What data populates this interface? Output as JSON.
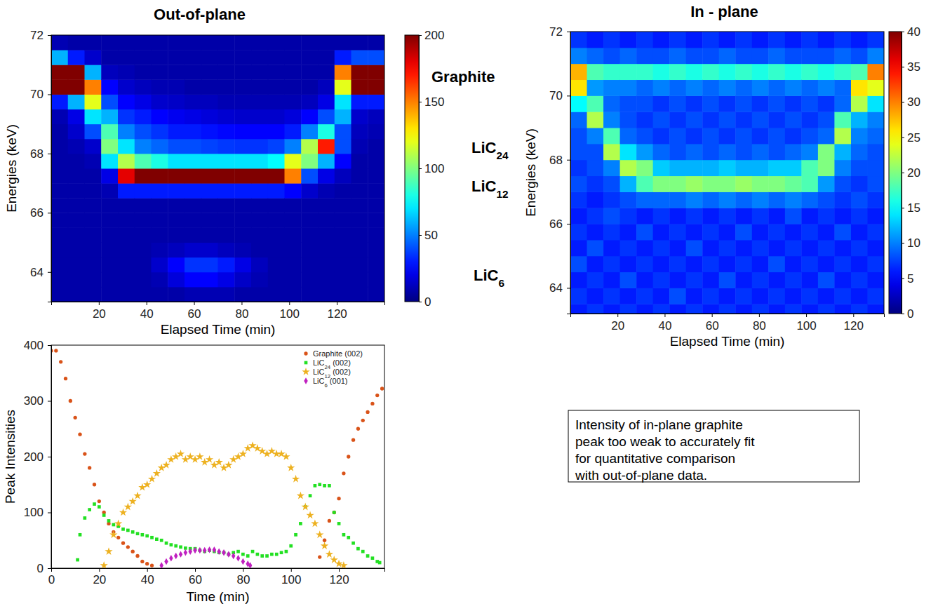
{
  "chart_data": [
    {
      "type": "heatmap",
      "title": "Out-of-plane",
      "x_label": "Elapsed Time (min)",
      "y_label": "Energies (keV)",
      "xlim": [
        0,
        140
      ],
      "ylim": [
        63,
        72
      ],
      "xticks": [
        20,
        40,
        60,
        80,
        100,
        120
      ],
      "yticks": [
        64,
        66,
        68,
        70,
        72
      ],
      "x_edges": [
        0,
        7,
        14,
        21,
        28,
        35,
        42,
        49,
        56,
        63,
        70,
        77,
        84,
        91,
        98,
        105,
        112,
        119,
        126,
        133,
        140
      ],
      "y_edges": [
        63,
        63.5,
        64,
        64.5,
        65,
        65.5,
        66,
        66.5,
        67,
        67.5,
        68,
        68.5,
        69,
        69.5,
        70,
        70.5,
        71,
        71.5,
        72
      ],
      "cells": [
        [
          8,
          8,
          8,
          8,
          8,
          8,
          8,
          8,
          8,
          8,
          8,
          8,
          10,
          30,
          200,
          230,
          60,
          10
        ],
        [
          8,
          8,
          8,
          8,
          8,
          8,
          8,
          8,
          8,
          8,
          10,
          15,
          20,
          60,
          220,
          210,
          30,
          8
        ],
        [
          8,
          8,
          8,
          8,
          8,
          8,
          8,
          8,
          8,
          10,
          15,
          40,
          70,
          120,
          150,
          60,
          15,
          8
        ],
        [
          8,
          8,
          8,
          8,
          8,
          8,
          8,
          10,
          20,
          70,
          100,
          90,
          60,
          40,
          25,
          12,
          8,
          8
        ],
        [
          8,
          8,
          8,
          8,
          8,
          8,
          8,
          30,
          180,
          110,
          70,
          50,
          35,
          25,
          15,
          10,
          8,
          8
        ],
        [
          8,
          8,
          8,
          8,
          8,
          8,
          8,
          30,
          220,
          90,
          50,
          40,
          30,
          20,
          12,
          8,
          8,
          8
        ],
        [
          8,
          10,
          15,
          10,
          8,
          8,
          8,
          30,
          230,
          80,
          45,
          35,
          25,
          15,
          10,
          8,
          8,
          8
        ],
        [
          8,
          18,
          25,
          12,
          8,
          8,
          8,
          30,
          240,
          70,
          40,
          30,
          22,
          14,
          10,
          8,
          8,
          8
        ],
        [
          10,
          25,
          35,
          15,
          8,
          8,
          8,
          30,
          240,
          70,
          40,
          30,
          20,
          12,
          8,
          8,
          8,
          8
        ],
        [
          10,
          25,
          35,
          15,
          8,
          8,
          8,
          30,
          240,
          70,
          38,
          28,
          18,
          12,
          8,
          8,
          8,
          8
        ],
        [
          10,
          20,
          30,
          12,
          8,
          8,
          8,
          30,
          240,
          70,
          36,
          26,
          16,
          10,
          8,
          8,
          8,
          8
        ],
        [
          8,
          14,
          20,
          10,
          8,
          8,
          8,
          30,
          240,
          70,
          35,
          25,
          15,
          10,
          8,
          8,
          8,
          8
        ],
        [
          8,
          10,
          12,
          8,
          8,
          8,
          8,
          30,
          240,
          70,
          35,
          25,
          15,
          10,
          8,
          8,
          8,
          8
        ],
        [
          8,
          8,
          8,
          8,
          8,
          8,
          8,
          30,
          230,
          75,
          38,
          25,
          15,
          10,
          8,
          8,
          8,
          8
        ],
        [
          8,
          8,
          8,
          8,
          8,
          8,
          8,
          25,
          150,
          120,
          50,
          30,
          18,
          10,
          8,
          8,
          8,
          8
        ],
        [
          8,
          8,
          8,
          8,
          8,
          8,
          8,
          15,
          40,
          100,
          110,
          50,
          25,
          12,
          8,
          8,
          8,
          8
        ],
        [
          8,
          8,
          8,
          8,
          8,
          8,
          8,
          10,
          20,
          60,
          170,
          80,
          40,
          20,
          12,
          8,
          8,
          8
        ],
        [
          8,
          8,
          8,
          8,
          8,
          8,
          8,
          8,
          12,
          25,
          40,
          40,
          60,
          70,
          120,
          150,
          30,
          8
        ],
        [
          8,
          8,
          8,
          8,
          8,
          8,
          8,
          8,
          8,
          8,
          10,
          12,
          15,
          30,
          200,
          240,
          40,
          8
        ],
        [
          8,
          8,
          8,
          8,
          8,
          8,
          8,
          8,
          8,
          8,
          8,
          10,
          12,
          30,
          210,
          240,
          40,
          8
        ]
      ],
      "colorbar_lim": [
        0,
        200
      ],
      "colorbar_ticks": [
        0,
        50,
        100,
        150,
        200
      ],
      "annotations": [
        "Graphite",
        "LiC24",
        "LiC12",
        "LiC6"
      ]
    },
    {
      "type": "heatmap",
      "title": "In - plane",
      "x_label": "Elapsed Time (min)",
      "y_label": "Energies (keV)",
      "xlim": [
        0,
        133
      ],
      "ylim": [
        63.2,
        72
      ],
      "xticks": [
        20,
        40,
        60,
        80,
        100,
        120
      ],
      "yticks": [
        64,
        66,
        68,
        70,
        72
      ],
      "x_edges": [
        0,
        7,
        14,
        21,
        28,
        35,
        42,
        49,
        56,
        63,
        70,
        77,
        84,
        91,
        98,
        105,
        112,
        119,
        126,
        133
      ],
      "y_edges": [
        63,
        63.5,
        64,
        64.5,
        65,
        65.5,
        66,
        66.5,
        67,
        67.5,
        68,
        68.5,
        69,
        69.5,
        70,
        70.5,
        71,
        71.5,
        72
      ],
      "cells": [
        [
          6,
          7,
          6,
          8,
          6,
          7,
          6,
          7,
          8,
          7,
          8,
          8,
          9,
          15,
          26,
          28,
          10,
          7
        ],
        [
          7,
          6,
          7,
          6,
          8,
          6,
          7,
          6,
          7,
          8,
          8,
          10,
          22,
          18,
          11,
          18,
          9,
          6
        ],
        [
          6,
          7,
          6,
          7,
          6,
          7,
          8,
          7,
          8,
          10,
          22,
          18,
          10,
          9,
          10,
          17,
          8,
          7
        ],
        [
          7,
          6,
          8,
          6,
          7,
          6,
          7,
          8,
          12,
          22,
          14,
          9,
          8,
          8,
          10,
          17,
          9,
          6
        ],
        [
          6,
          7,
          6,
          7,
          6,
          8,
          6,
          9,
          18,
          20,
          11,
          8,
          7,
          8,
          9,
          17,
          8,
          7
        ],
        [
          7,
          6,
          7,
          6,
          7,
          6,
          7,
          9,
          20,
          13,
          9,
          7,
          8,
          7,
          10,
          16,
          8,
          6
        ],
        [
          6,
          8,
          6,
          7,
          6,
          7,
          6,
          9,
          20,
          12,
          8,
          8,
          7,
          8,
          9,
          17,
          9,
          7
        ],
        [
          7,
          6,
          7,
          6,
          8,
          6,
          7,
          10,
          21,
          12,
          9,
          7,
          8,
          7,
          10,
          16,
          8,
          6
        ],
        [
          6,
          7,
          6,
          7,
          6,
          7,
          6,
          9,
          20,
          12,
          8,
          8,
          7,
          8,
          9,
          17,
          8,
          7
        ],
        [
          7,
          6,
          8,
          6,
          7,
          6,
          7,
          10,
          20,
          13,
          9,
          7,
          8,
          7,
          10,
          16,
          9,
          6
        ],
        [
          6,
          7,
          6,
          7,
          6,
          8,
          6,
          9,
          21,
          12,
          8,
          8,
          7,
          8,
          9,
          17,
          8,
          7
        ],
        [
          7,
          6,
          7,
          6,
          7,
          6,
          7,
          10,
          20,
          12,
          9,
          7,
          8,
          7,
          10,
          16,
          8,
          6
        ],
        [
          6,
          7,
          6,
          8,
          6,
          7,
          6,
          9,
          20,
          13,
          8,
          8,
          7,
          8,
          9,
          17,
          9,
          7
        ],
        [
          7,
          6,
          7,
          6,
          7,
          6,
          8,
          10,
          19,
          13,
          9,
          7,
          8,
          7,
          10,
          16,
          8,
          6
        ],
        [
          6,
          7,
          6,
          7,
          6,
          7,
          6,
          9,
          18,
          18,
          10,
          8,
          7,
          8,
          9,
          17,
          8,
          7
        ],
        [
          7,
          6,
          8,
          6,
          7,
          6,
          7,
          8,
          11,
          20,
          20,
          9,
          8,
          7,
          10,
          16,
          8,
          6
        ],
        [
          6,
          7,
          6,
          7,
          6,
          8,
          6,
          7,
          8,
          10,
          12,
          22,
          18,
          9,
          9,
          17,
          9,
          7
        ],
        [
          7,
          6,
          7,
          6,
          7,
          6,
          7,
          8,
          7,
          8,
          9,
          10,
          12,
          22,
          26,
          18,
          8,
          6
        ],
        [
          6,
          7,
          6,
          7,
          6,
          7,
          6,
          7,
          8,
          8,
          8,
          9,
          10,
          14,
          24,
          30,
          10,
          7
        ]
      ],
      "colorbar_lim": [
        0,
        40
      ],
      "colorbar_ticks": [
        0,
        5,
        10,
        15,
        20,
        25,
        30,
        35,
        40
      ],
      "annotations": [
        "Intensity of in-plane graphite",
        "peak too weak to accurately fit",
        "for quantitative comparison",
        "with out-of-plane data."
      ]
    },
    {
      "type": "scatter",
      "x_label": "Time (min)",
      "y_label": "Peak Intensities",
      "xlim": [
        0,
        139
      ],
      "ylim": [
        0,
        400
      ],
      "xticks": [
        0,
        20,
        40,
        60,
        80,
        100,
        120
      ],
      "yticks": [
        0,
        100,
        200,
        300,
        400
      ],
      "legend": "upper right",
      "series": [
        {
          "name": "Graphite (002)",
          "color": "#d95319",
          "marker": "circle",
          "x": [
            0,
            2,
            4,
            6,
            8,
            10,
            12,
            14,
            16,
            18,
            20,
            22,
            24,
            26,
            28,
            30,
            32,
            34,
            36,
            38,
            40,
            42,
            112,
            114,
            116,
            118,
            120,
            122,
            124,
            126,
            128,
            130,
            132,
            134,
            136,
            138
          ],
          "values": [
            390,
            390,
            370,
            340,
            300,
            270,
            240,
            205,
            180,
            150,
            120,
            100,
            80,
            65,
            55,
            45,
            38,
            30,
            22,
            12,
            8,
            5,
            20,
            50,
            85,
            100,
            125,
            170,
            200,
            230,
            250,
            265,
            280,
            295,
            310,
            322
          ]
        },
        {
          "name": "LiC24 (002)",
          "color": "#22e022",
          "marker": "square",
          "x": [
            11,
            12,
            14,
            16,
            18,
            20,
            22,
            24,
            26,
            28,
            30,
            32,
            34,
            36,
            38,
            40,
            42,
            44,
            46,
            48,
            50,
            52,
            54,
            56,
            58,
            60,
            62,
            64,
            66,
            68,
            70,
            72,
            74,
            76,
            78,
            80,
            82,
            84,
            86,
            88,
            90,
            92,
            94,
            96,
            98,
            100,
            102,
            104,
            106,
            108,
            110,
            112,
            114,
            116,
            118,
            120,
            122,
            124,
            126,
            128,
            130,
            132,
            134,
            136,
            137
          ],
          "values": [
            15,
            60,
            90,
            105,
            115,
            110,
            95,
            85,
            78,
            75,
            70,
            68,
            65,
            62,
            60,
            58,
            55,
            52,
            50,
            45,
            42,
            40,
            38,
            36,
            35,
            35,
            32,
            30,
            32,
            30,
            28,
            28,
            25,
            28,
            30,
            25,
            22,
            30,
            25,
            22,
            22,
            25,
            25,
            28,
            30,
            40,
            60,
            80,
            110,
            130,
            148,
            150,
            148,
            148,
            100,
            80,
            60,
            55,
            45,
            35,
            30,
            22,
            18,
            12,
            10
          ]
        },
        {
          "name": "LiC12 (002)",
          "color": "#edb120",
          "marker": "star",
          "x": [
            22,
            24,
            26,
            28,
            30,
            32,
            34,
            36,
            38,
            40,
            42,
            44,
            46,
            48,
            50,
            52,
            54,
            56,
            58,
            60,
            62,
            64,
            66,
            68,
            70,
            72,
            74,
            76,
            78,
            80,
            82,
            84,
            86,
            88,
            90,
            92,
            94,
            96,
            98,
            100,
            102,
            104,
            106,
            108,
            110,
            112,
            114,
            116,
            118,
            120,
            122
          ],
          "values": [
            5,
            30,
            60,
            80,
            100,
            110,
            120,
            130,
            145,
            150,
            160,
            170,
            180,
            185,
            195,
            200,
            205,
            195,
            200,
            195,
            200,
            190,
            195,
            185,
            190,
            180,
            185,
            195,
            200,
            205,
            215,
            220,
            215,
            210,
            205,
            210,
            205,
            205,
            200,
            180,
            160,
            130,
            110,
            95,
            80,
            60,
            40,
            25,
            15,
            8,
            5
          ]
        },
        {
          "name": "LiC6 (001)",
          "color": "#c020c0",
          "marker": "diamond",
          "x": [
            46,
            48,
            50,
            52,
            54,
            56,
            58,
            60,
            62,
            64,
            66,
            68,
            70,
            72,
            74,
            76,
            78,
            80,
            82,
            83
          ],
          "values": [
            5,
            12,
            18,
            22,
            25,
            28,
            30,
            32,
            32,
            32,
            33,
            33,
            30,
            28,
            25,
            22,
            18,
            12,
            8,
            5
          ]
        }
      ]
    }
  ]
}
